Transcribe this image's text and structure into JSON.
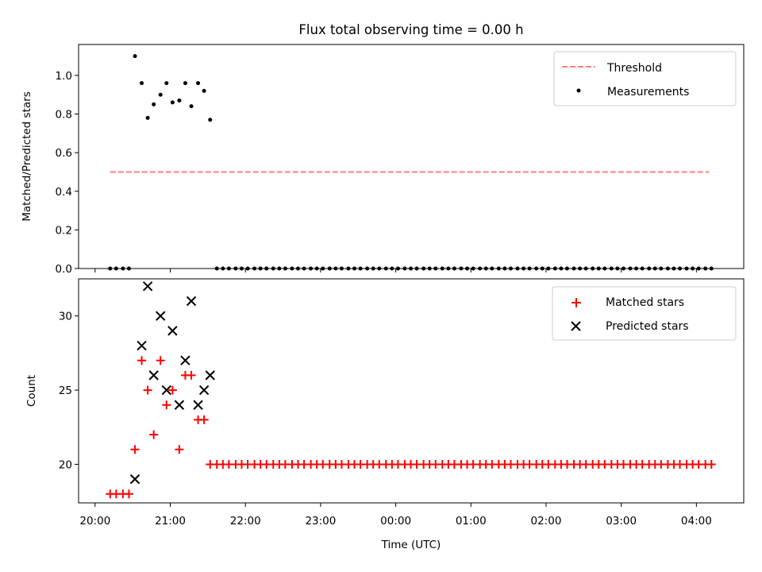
{
  "chart_data": {
    "title": "Flux total observing time = 0.00 h",
    "xlabel": "Time (UTC)",
    "x_unit": "hours (clock time, continuing past midnight)",
    "xlim": [
      19.78,
      28.63
    ],
    "xticks": [
      {
        "v": 20,
        "label": "20:00"
      },
      {
        "v": 21,
        "label": "21:00"
      },
      {
        "v": 22,
        "label": "22:00"
      },
      {
        "v": 23,
        "label": "23:00"
      },
      {
        "v": 24,
        "label": "00:00"
      },
      {
        "v": 25,
        "label": "01:00"
      },
      {
        "v": 26,
        "label": "02:00"
      },
      {
        "v": 27,
        "label": "03:00"
      },
      {
        "v": 28,
        "label": "04:00"
      }
    ],
    "panels": [
      {
        "type": "scatter",
        "ylabel": "Matched/Predicted stars",
        "ylim": [
          0,
          1.16
        ],
        "yticks": [
          {
            "v": 0,
            "label": "0.0"
          },
          {
            "v": 0.2,
            "label": "0.2"
          },
          {
            "v": 0.4,
            "label": "0.4"
          },
          {
            "v": 0.6,
            "label": "0.6"
          },
          {
            "v": 0.8,
            "label": "0.8"
          },
          {
            "v": 1.0,
            "label": "1.0"
          }
        ],
        "legend_position": "top-right",
        "threshold": {
          "name": "Threshold",
          "value": 0.5,
          "x_range": [
            20.2,
            28.17
          ],
          "color": "#ff7f7f"
        },
        "measurements": {
          "name": "Measurements",
          "color": "#000000",
          "points": [
            [
              20.2,
              0
            ],
            [
              20.28,
              0
            ],
            [
              20.37,
              0
            ],
            [
              20.45,
              0
            ],
            [
              20.53,
              1.1
            ],
            [
              20.62,
              0.96
            ],
            [
              20.7,
              0.78
            ],
            [
              20.78,
              0.85
            ],
            [
              20.87,
              0.9
            ],
            [
              20.95,
              0.96
            ],
            [
              21.03,
              0.86
            ],
            [
              21.12,
              0.87
            ],
            [
              21.2,
              0.96
            ],
            [
              21.28,
              0.84
            ],
            [
              21.37,
              0.96
            ],
            [
              21.45,
              0.92
            ],
            [
              21.53,
              0.77
            ],
            [
              21.62,
              0
            ],
            [
              21.7,
              0
            ],
            [
              21.78,
              0
            ],
            [
              21.87,
              0
            ],
            [
              21.95,
              0
            ],
            [
              22.03,
              0
            ],
            [
              22.12,
              0
            ],
            [
              22.2,
              0
            ],
            [
              22.28,
              0
            ],
            [
              22.37,
              0
            ],
            [
              22.45,
              0
            ],
            [
              22.53,
              0
            ],
            [
              22.62,
              0
            ],
            [
              22.7,
              0
            ],
            [
              22.78,
              0
            ],
            [
              22.87,
              0
            ],
            [
              22.95,
              0
            ],
            [
              23.03,
              0
            ],
            [
              23.12,
              0
            ],
            [
              23.2,
              0
            ],
            [
              23.28,
              0
            ],
            [
              23.37,
              0
            ],
            [
              23.45,
              0
            ],
            [
              23.53,
              0
            ],
            [
              23.62,
              0
            ],
            [
              23.7,
              0
            ],
            [
              23.78,
              0
            ],
            [
              23.87,
              0
            ],
            [
              23.95,
              0
            ],
            [
              24.03,
              0
            ],
            [
              24.12,
              0
            ],
            [
              24.2,
              0
            ],
            [
              24.28,
              0
            ],
            [
              24.37,
              0
            ],
            [
              24.45,
              0
            ],
            [
              24.53,
              0
            ],
            [
              24.62,
              0
            ],
            [
              24.7,
              0
            ],
            [
              24.78,
              0
            ],
            [
              24.87,
              0
            ],
            [
              24.95,
              0
            ],
            [
              25.03,
              0
            ],
            [
              25.12,
              0
            ],
            [
              25.2,
              0
            ],
            [
              25.28,
              0
            ],
            [
              25.37,
              0
            ],
            [
              25.45,
              0
            ],
            [
              25.53,
              0
            ],
            [
              25.62,
              0
            ],
            [
              25.7,
              0
            ],
            [
              25.78,
              0
            ],
            [
              25.87,
              0
            ],
            [
              25.95,
              0
            ],
            [
              26.03,
              0
            ],
            [
              26.12,
              0
            ],
            [
              26.2,
              0
            ],
            [
              26.28,
              0
            ],
            [
              26.37,
              0
            ],
            [
              26.45,
              0
            ],
            [
              26.53,
              0
            ],
            [
              26.62,
              0
            ],
            [
              26.7,
              0
            ],
            [
              26.78,
              0
            ],
            [
              26.87,
              0
            ],
            [
              26.95,
              0
            ],
            [
              27.03,
              0
            ],
            [
              27.12,
              0
            ],
            [
              27.2,
              0
            ],
            [
              27.28,
              0
            ],
            [
              27.37,
              0
            ],
            [
              27.45,
              0
            ],
            [
              27.53,
              0
            ],
            [
              27.62,
              0
            ],
            [
              27.7,
              0
            ],
            [
              27.78,
              0
            ],
            [
              27.87,
              0
            ],
            [
              27.95,
              0
            ],
            [
              28.03,
              0
            ],
            [
              28.12,
              0
            ],
            [
              28.2,
              0
            ]
          ]
        }
      },
      {
        "type": "scatter",
        "ylabel": "Count",
        "ylim": [
          17.4,
          32.5
        ],
        "yticks": [
          {
            "v": 20,
            "label": "20"
          },
          {
            "v": 25,
            "label": "25"
          },
          {
            "v": 30,
            "label": "30"
          }
        ],
        "legend_position": "top-right",
        "matched": {
          "name": "Matched stars",
          "marker": "+",
          "color": "#ff0000",
          "points": [
            [
              20.2,
              18
            ],
            [
              20.28,
              18
            ],
            [
              20.37,
              18
            ],
            [
              20.45,
              18
            ],
            [
              20.53,
              21
            ],
            [
              20.62,
              27
            ],
            [
              20.7,
              25
            ],
            [
              20.78,
              22
            ],
            [
              20.87,
              27
            ],
            [
              20.95,
              24
            ],
            [
              21.03,
              25
            ],
            [
              21.12,
              21
            ],
            [
              21.2,
              26
            ],
            [
              21.28,
              26
            ],
            [
              21.37,
              23
            ],
            [
              21.45,
              23
            ],
            [
              21.53,
              20
            ],
            [
              21.62,
              20
            ],
            [
              21.7,
              20
            ],
            [
              21.78,
              20
            ],
            [
              21.87,
              20
            ],
            [
              21.95,
              20
            ],
            [
              22.03,
              20
            ],
            [
              22.12,
              20
            ],
            [
              22.2,
              20
            ],
            [
              22.28,
              20
            ],
            [
              22.37,
              20
            ],
            [
              22.45,
              20
            ],
            [
              22.53,
              20
            ],
            [
              22.62,
              20
            ],
            [
              22.7,
              20
            ],
            [
              22.78,
              20
            ],
            [
              22.87,
              20
            ],
            [
              22.95,
              20
            ],
            [
              23.03,
              20
            ],
            [
              23.12,
              20
            ],
            [
              23.2,
              20
            ],
            [
              23.28,
              20
            ],
            [
              23.37,
              20
            ],
            [
              23.45,
              20
            ],
            [
              23.53,
              20
            ],
            [
              23.62,
              20
            ],
            [
              23.7,
              20
            ],
            [
              23.78,
              20
            ],
            [
              23.87,
              20
            ],
            [
              23.95,
              20
            ],
            [
              24.03,
              20
            ],
            [
              24.12,
              20
            ],
            [
              24.2,
              20
            ],
            [
              24.28,
              20
            ],
            [
              24.37,
              20
            ],
            [
              24.45,
              20
            ],
            [
              24.53,
              20
            ],
            [
              24.62,
              20
            ],
            [
              24.7,
              20
            ],
            [
              24.78,
              20
            ],
            [
              24.87,
              20
            ],
            [
              24.95,
              20
            ],
            [
              25.03,
              20
            ],
            [
              25.12,
              20
            ],
            [
              25.2,
              20
            ],
            [
              25.28,
              20
            ],
            [
              25.37,
              20
            ],
            [
              25.45,
              20
            ],
            [
              25.53,
              20
            ],
            [
              25.62,
              20
            ],
            [
              25.7,
              20
            ],
            [
              25.78,
              20
            ],
            [
              25.87,
              20
            ],
            [
              25.95,
              20
            ],
            [
              26.03,
              20
            ],
            [
              26.12,
              20
            ],
            [
              26.2,
              20
            ],
            [
              26.28,
              20
            ],
            [
              26.37,
              20
            ],
            [
              26.45,
              20
            ],
            [
              26.53,
              20
            ],
            [
              26.62,
              20
            ],
            [
              26.7,
              20
            ],
            [
              26.78,
              20
            ],
            [
              26.87,
              20
            ],
            [
              26.95,
              20
            ],
            [
              27.03,
              20
            ],
            [
              27.12,
              20
            ],
            [
              27.2,
              20
            ],
            [
              27.28,
              20
            ],
            [
              27.37,
              20
            ],
            [
              27.45,
              20
            ],
            [
              27.53,
              20
            ],
            [
              27.62,
              20
            ],
            [
              27.7,
              20
            ],
            [
              27.78,
              20
            ],
            [
              27.87,
              20
            ],
            [
              27.95,
              20
            ],
            [
              28.03,
              20
            ],
            [
              28.12,
              20
            ],
            [
              28.2,
              20
            ]
          ]
        },
        "predicted": {
          "name": "Predicted stars",
          "marker": "x",
          "color": "#000000",
          "points": [
            [
              20.53,
              19
            ],
            [
              20.62,
              28
            ],
            [
              20.7,
              32
            ],
            [
              20.78,
              26
            ],
            [
              20.87,
              30
            ],
            [
              20.95,
              25
            ],
            [
              21.03,
              29
            ],
            [
              21.12,
              24
            ],
            [
              21.2,
              27
            ],
            [
              21.28,
              31
            ],
            [
              21.37,
              24
            ],
            [
              21.45,
              25
            ],
            [
              21.53,
              26
            ]
          ]
        }
      }
    ]
  }
}
